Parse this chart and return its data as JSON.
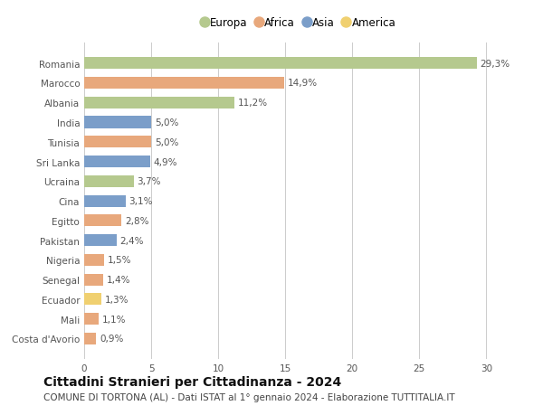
{
  "countries": [
    "Romania",
    "Marocco",
    "Albania",
    "India",
    "Tunisia",
    "Sri Lanka",
    "Ucraina",
    "Cina",
    "Egitto",
    "Pakistan",
    "Nigeria",
    "Senegal",
    "Ecuador",
    "Mali",
    "Costa d'Avorio"
  ],
  "values": [
    29.3,
    14.9,
    11.2,
    5.0,
    5.0,
    4.9,
    3.7,
    3.1,
    2.8,
    2.4,
    1.5,
    1.4,
    1.3,
    1.1,
    0.9
  ],
  "labels": [
    "29,3%",
    "14,9%",
    "11,2%",
    "5,0%",
    "5,0%",
    "4,9%",
    "3,7%",
    "3,1%",
    "2,8%",
    "2,4%",
    "1,5%",
    "1,4%",
    "1,3%",
    "1,1%",
    "0,9%"
  ],
  "continents": [
    "Europa",
    "Africa",
    "Europa",
    "Asia",
    "Africa",
    "Asia",
    "Europa",
    "Asia",
    "Africa",
    "Asia",
    "Africa",
    "Africa",
    "America",
    "Africa",
    "Africa"
  ],
  "colors": {
    "Europa": "#b5c98e",
    "Africa": "#e8a87c",
    "Asia": "#7b9ec9",
    "America": "#f0d070"
  },
  "legend_order": [
    "Europa",
    "Africa",
    "Asia",
    "America"
  ],
  "title": "Cittadini Stranieri per Cittadinanza - 2024",
  "subtitle": "COMUNE DI TORTONA (AL) - Dati ISTAT al 1° gennaio 2024 - Elaborazione TUTTITALIA.IT",
  "xlim": [
    0,
    32
  ],
  "xticks": [
    0,
    5,
    10,
    15,
    20,
    25,
    30
  ],
  "background_color": "#ffffff",
  "grid_color": "#cccccc",
  "bar_height": 0.6,
  "title_fontsize": 10,
  "subtitle_fontsize": 7.5,
  "label_fontsize": 7.5,
  "tick_fontsize": 7.5,
  "legend_fontsize": 8.5
}
